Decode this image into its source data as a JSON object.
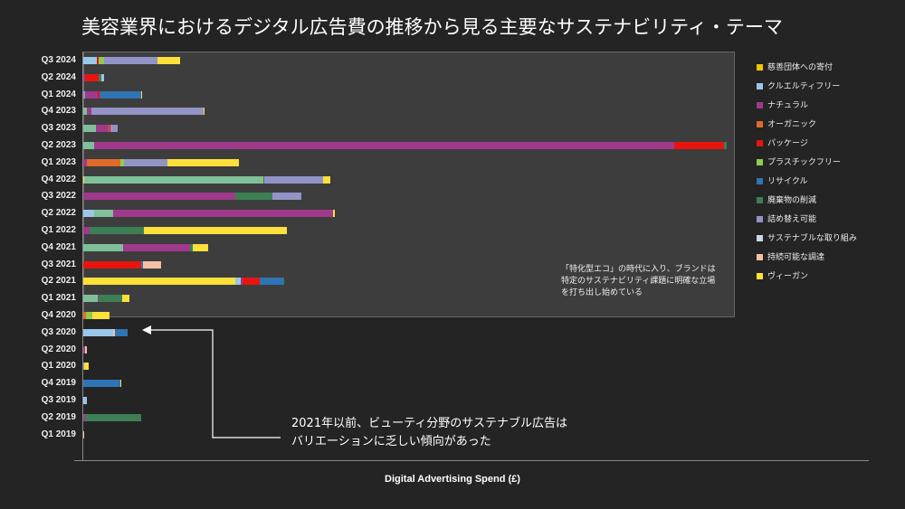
{
  "chart_data": {
    "type": "bar",
    "orientation": "horizontal-stacked",
    "title": "美容業界におけるデジタル広告費の推移から見る主要なサステナビリティ・テーマ",
    "xlabel": "Digital Advertising Spend (£)",
    "ylabel": "",
    "grid": false,
    "legend_position": "right",
    "series": [
      {
        "key": "charity",
        "name": "慈善団体への寄付",
        "color": "#f2c500"
      },
      {
        "key": "cruelty",
        "name": "クルエルティフリー",
        "color": "#9ac6ea"
      },
      {
        "key": "natural",
        "name": "ナチュラル",
        "color": "#a0398c"
      },
      {
        "key": "organic",
        "name": "オーガニック",
        "color": "#e06a2a"
      },
      {
        "key": "packaging",
        "name": "パッケージ",
        "color": "#e8150f"
      },
      {
        "key": "plasticfree",
        "name": "プラスチックフリー",
        "color": "#8fcc4a"
      },
      {
        "key": "recycle",
        "name": "リサイクル",
        "color": "#2f74b5"
      },
      {
        "key": "waste",
        "name": "廃棄物の削減",
        "color": "#3d7f55"
      },
      {
        "key": "refill",
        "name": "詰め替え可能",
        "color": "#9393c8"
      },
      {
        "key": "sustainable",
        "name": "サステナブルな取り組み",
        "color": "#c8d8ea"
      },
      {
        "key": "sourcing",
        "name": "持続可能な調達",
        "color": "#f3c0a4"
      },
      {
        "key": "vegan",
        "name": "ヴィーガン",
        "color": "#fde03a"
      }
    ],
    "extra_colors": {
      "mint": "#7fc09a"
    },
    "categories": [
      "Q3 2024",
      "Q2 2024",
      "Q1 2024",
      "Q4 2023",
      "Q3 2023",
      "Q2 2023",
      "Q1 2023",
      "Q4 2022",
      "Q3 2022",
      "Q2 2022",
      "Q1 2022",
      "Q4 2021",
      "Q3 2021",
      "Q2 2021",
      "Q1 2021",
      "Q4 2020",
      "Q3 2020",
      "Q2 2020",
      "Q1 2020",
      "Q4 2019",
      "Q3 2019",
      "Q2 2019",
      "Q1 2019"
    ],
    "rows": [
      [
        [
          "cruelty",
          15
        ],
        [
          "packaging",
          2
        ],
        [
          "plasticfree",
          6
        ],
        [
          "refill",
          59
        ],
        [
          "vegan",
          25
        ]
      ],
      [
        [
          "natural",
          2
        ],
        [
          "packaging",
          15
        ],
        [
          "waste",
          3
        ],
        [
          "cruelty",
          3
        ]
      ],
      [
        [
          "refill",
          2
        ],
        [
          "natural",
          14
        ],
        [
          "packaging",
          2
        ],
        [
          "recycle",
          46
        ],
        [
          "vegan",
          1
        ]
      ],
      [
        [
          "mint",
          4
        ],
        [
          "natural",
          5
        ],
        [
          "refill",
          124
        ],
        [
          "vegan",
          1
        ]
      ],
      [
        [
          "mint",
          14
        ],
        [
          "natural",
          14
        ],
        [
          "organic",
          1
        ],
        [
          "packaging",
          1
        ],
        [
          "refill",
          8
        ]
      ],
      [
        [
          "mint",
          12
        ],
        [
          "natural",
          641
        ],
        [
          "packaging",
          55
        ],
        [
          "waste",
          3
        ]
      ],
      [
        [
          "natural",
          4
        ],
        [
          "organic",
          37
        ],
        [
          "plasticfree",
          4
        ],
        [
          "refill",
          48
        ],
        [
          "vegan",
          79
        ]
      ],
      [
        [
          "vegan",
          1
        ],
        [
          "mint",
          196
        ],
        [
          "plasticfree",
          2
        ],
        [
          "recycle",
          1
        ],
        [
          "refill",
          65
        ],
        [
          "vegan",
          8
        ]
      ],
      [
        [
          "natural",
          168
        ],
        [
          "waste",
          41
        ],
        [
          "refill",
          32
        ]
      ],
      [
        [
          "cruelty",
          12
        ],
        [
          "mint",
          21
        ],
        [
          "natural",
          243
        ],
        [
          "vegan",
          2
        ]
      ],
      [
        [
          "natural",
          7
        ],
        [
          "waste",
          60
        ],
        [
          "vegan",
          158
        ]
      ],
      [
        [
          "mint",
          44
        ],
        [
          "natural",
          74
        ],
        [
          "waste",
          3
        ],
        [
          "vegan",
          17
        ]
      ],
      [
        [
          "packaging",
          64
        ],
        [
          "recycle",
          2
        ],
        [
          "sourcing",
          20
        ]
      ],
      [
        [
          "vegan",
          168
        ],
        [
          "cruelty",
          6
        ],
        [
          "natural",
          2
        ],
        [
          "packaging",
          19
        ],
        [
          "recycle",
          26
        ],
        [
          "waste",
          1
        ]
      ],
      [
        [
          "mint",
          16
        ],
        [
          "natural",
          1
        ],
        [
          "waste",
          26
        ],
        [
          "vegan",
          8
        ]
      ],
      [
        [
          "organic",
          3
        ],
        [
          "plasticfree",
          7
        ],
        [
          "vegan",
          19
        ]
      ],
      [
        [
          "cruelty",
          33
        ],
        [
          "sourcing",
          2
        ],
        [
          "recycle",
          14
        ]
      ],
      [
        [
          "natural",
          2
        ],
        [
          "sourcing",
          2
        ]
      ],
      [
        [
          "refill",
          1
        ],
        [
          "vegan",
          5
        ]
      ],
      [
        [
          "recycle",
          41
        ],
        [
          "vegan",
          1
        ]
      ],
      [
        [
          "cruelty",
          4
        ]
      ],
      [
        [
          "natural",
          2
        ],
        [
          "waste",
          62
        ]
      ],
      [
        [
          "sourcing",
          1
        ]
      ]
    ],
    "annotations": [
      "「特化型エコ」の時代に入り、ブランドは",
      "特定のサステナビリティ課題に明確な立場",
      "を打ち出し始めている",
      "2021年以前、ビューティ分野のサステナブル広告は",
      "バリエーションに乏しい傾向があった"
    ]
  }
}
